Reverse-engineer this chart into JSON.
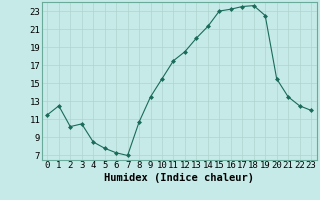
{
  "x": [
    0,
    1,
    2,
    3,
    4,
    5,
    6,
    7,
    8,
    9,
    10,
    11,
    12,
    13,
    14,
    15,
    16,
    17,
    18,
    19,
    20,
    21,
    22,
    23
  ],
  "y": [
    11.5,
    12.5,
    10.2,
    10.5,
    8.5,
    7.8,
    7.3,
    7.0,
    10.7,
    13.5,
    15.5,
    17.5,
    18.5,
    20.0,
    21.3,
    23.0,
    23.2,
    23.5,
    23.6,
    22.5,
    15.5,
    13.5,
    12.5,
    12.0
  ],
  "xlabel": "Humidex (Indice chaleur)",
  "ylim": [
    6.5,
    24.0
  ],
  "xlim": [
    -0.5,
    23.5
  ],
  "yticks": [
    7,
    9,
    11,
    13,
    15,
    17,
    19,
    21,
    23
  ],
  "xticks": [
    0,
    1,
    2,
    3,
    4,
    5,
    6,
    7,
    8,
    9,
    10,
    11,
    12,
    13,
    14,
    15,
    16,
    17,
    18,
    19,
    20,
    21,
    22,
    23
  ],
  "line_color": "#1a6b5a",
  "marker": "D",
  "marker_size": 2.0,
  "bg_color": "#c5eae7",
  "grid_color": "#b0d5d0",
  "xlabel_fontsize": 7.5,
  "tick_fontsize": 6.5
}
